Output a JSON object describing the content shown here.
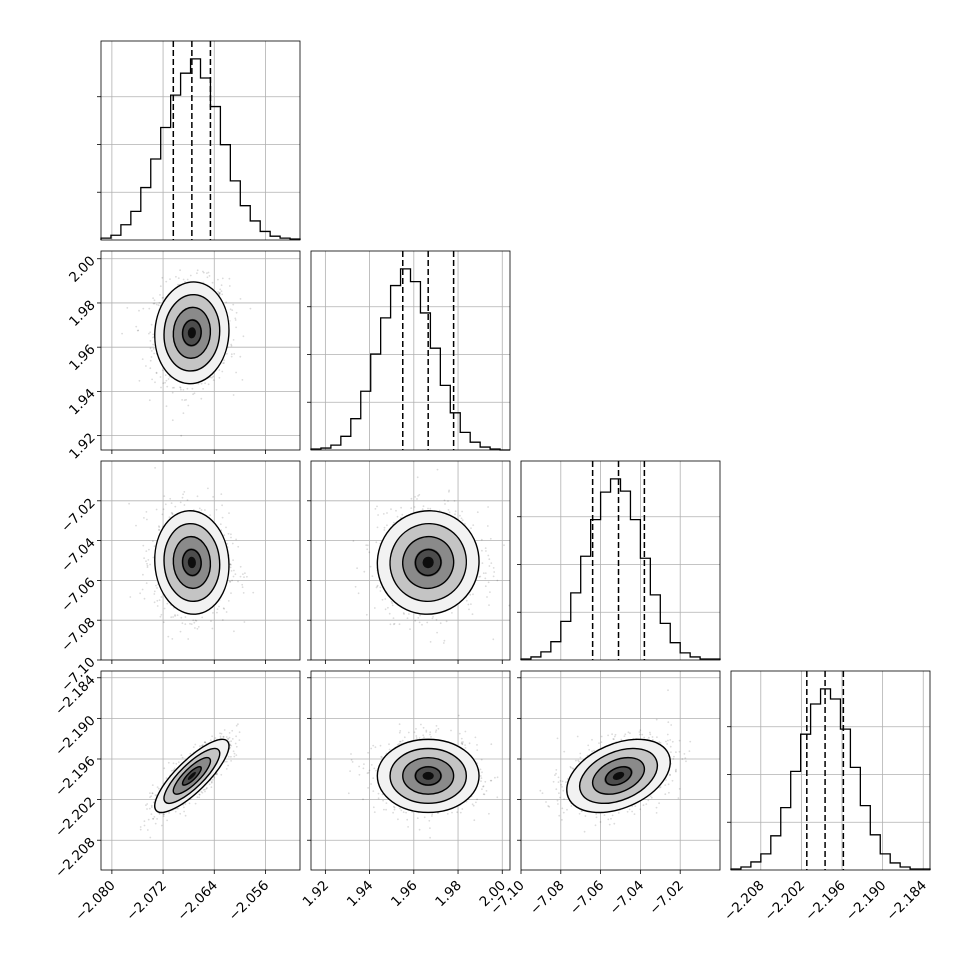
{
  "chart_data": {
    "type": "corner",
    "n_params": 4,
    "quantile_lines": [
      0.16,
      0.5,
      0.84
    ],
    "grid": true,
    "params": [
      {
        "mean": -2.0675,
        "sd": 0.0029,
        "range": [
          -2.0817,
          -2.0506
        ],
        "ticks": [
          -2.08,
          -2.072,
          -2.064,
          -2.056
        ],
        "tick_labels": [
          "−2.080",
          "−2.072",
          "−2.064",
          "−2.056"
        ]
      },
      {
        "mean": 1.9665,
        "sd": 0.0115,
        "range": [
          1.9135,
          2.0035
        ],
        "ticks": [
          1.92,
          1.94,
          1.96,
          1.98,
          2.0
        ],
        "tick_labels": [
          "1.92",
          "1.94",
          "1.96",
          "1.98",
          "2.00"
        ]
      },
      {
        "mean": -7.051,
        "sd": 0.013,
        "range": [
          -7.1,
          -7.0
        ],
        "ticks": [
          -7.1,
          -7.08,
          -7.06,
          -7.04,
          -7.02
        ],
        "tick_labels": [
          "−7.10",
          "−7.08",
          "−7.06",
          "−7.04",
          "−7.02"
        ]
      },
      {
        "mean": -2.1985,
        "sd": 0.0027,
        "range": [
          -2.2124,
          -2.183
        ],
        "ticks": [
          -2.208,
          -2.202,
          -2.196,
          -2.19,
          -2.184
        ],
        "tick_labels": [
          "−2.208",
          "−2.202",
          "−2.196",
          "−2.190",
          "−2.184"
        ]
      }
    ],
    "correlations": [
      [
        0,
        1,
        0.05
      ],
      [
        0,
        2,
        -0.05
      ],
      [
        1,
        2,
        0.02
      ],
      [
        0,
        3,
        0.82
      ],
      [
        1,
        3,
        0.0
      ],
      [
        2,
        3,
        0.38
      ]
    ],
    "contour_levels_sigma": [
      0.5,
      1.0,
      1.5,
      2.0
    ],
    "histograms": [
      {
        "bins": 20,
        "counts": [
          2,
          5,
          16,
          30,
          55,
          85,
          118,
          152,
          175,
          190,
          170,
          140,
          100,
          62,
          36,
          20,
          9,
          4,
          2,
          1
        ]
      },
      {
        "bins": 20,
        "counts": [
          1,
          2,
          5,
          14,
          32,
          60,
          98,
          135,
          168,
          185,
          172,
          140,
          104,
          66,
          38,
          18,
          8,
          3,
          1,
          0
        ]
      },
      {
        "bins": 20,
        "counts": [
          1,
          3,
          8,
          18,
          38,
          66,
          102,
          138,
          165,
          178,
          166,
          138,
          100,
          64,
          36,
          17,
          7,
          3,
          1,
          1
        ]
      },
      {
        "bins": 20,
        "counts": [
          1,
          3,
          8,
          16,
          34,
          62,
          98,
          135,
          165,
          180,
          170,
          140,
          102,
          64,
          35,
          16,
          7,
          3,
          1,
          1
        ]
      }
    ]
  }
}
